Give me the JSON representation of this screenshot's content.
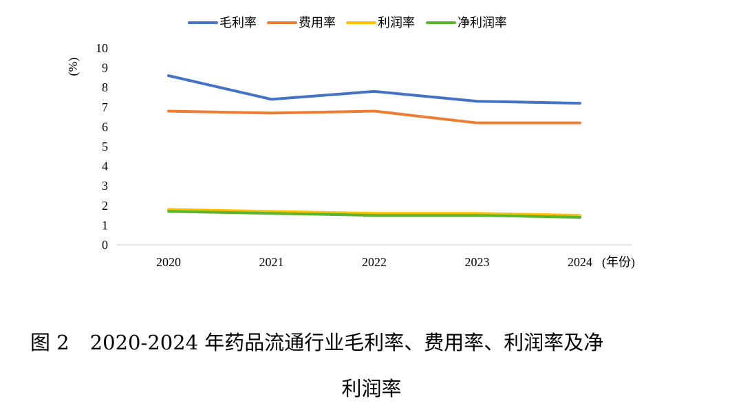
{
  "chart_data": {
    "type": "line",
    "x": [
      "2020",
      "2021",
      "2022",
      "2023",
      "2024"
    ],
    "series": [
      {
        "name": "毛利率",
        "color": "#4472C4",
        "values": [
          8.6,
          7.4,
          7.8,
          7.3,
          7.2
        ]
      },
      {
        "name": "费用率",
        "color": "#ED7D31",
        "values": [
          6.8,
          6.7,
          6.8,
          6.2,
          6.2
        ]
      },
      {
        "name": "利润率",
        "color": "#FFC000",
        "values": [
          1.8,
          1.7,
          1.6,
          1.6,
          1.5
        ]
      },
      {
        "name": "净利润率",
        "color": "#5BB62E",
        "values": [
          1.7,
          1.6,
          1.5,
          1.5,
          1.4
        ]
      }
    ],
    "ylabel": "(%)",
    "xlabel": "(年份)",
    "ylim": [
      0,
      10
    ],
    "yticks": [
      "0",
      "1",
      "2",
      "3",
      "4",
      "5",
      "6",
      "7",
      "8",
      "9",
      "10"
    ],
    "legend": "top",
    "grid": false
  },
  "caption": {
    "figure_number": "图 2",
    "line1": "2020-2024 年药品流通行业毛利率、费用率、利润率及净",
    "line2": "利润率"
  }
}
